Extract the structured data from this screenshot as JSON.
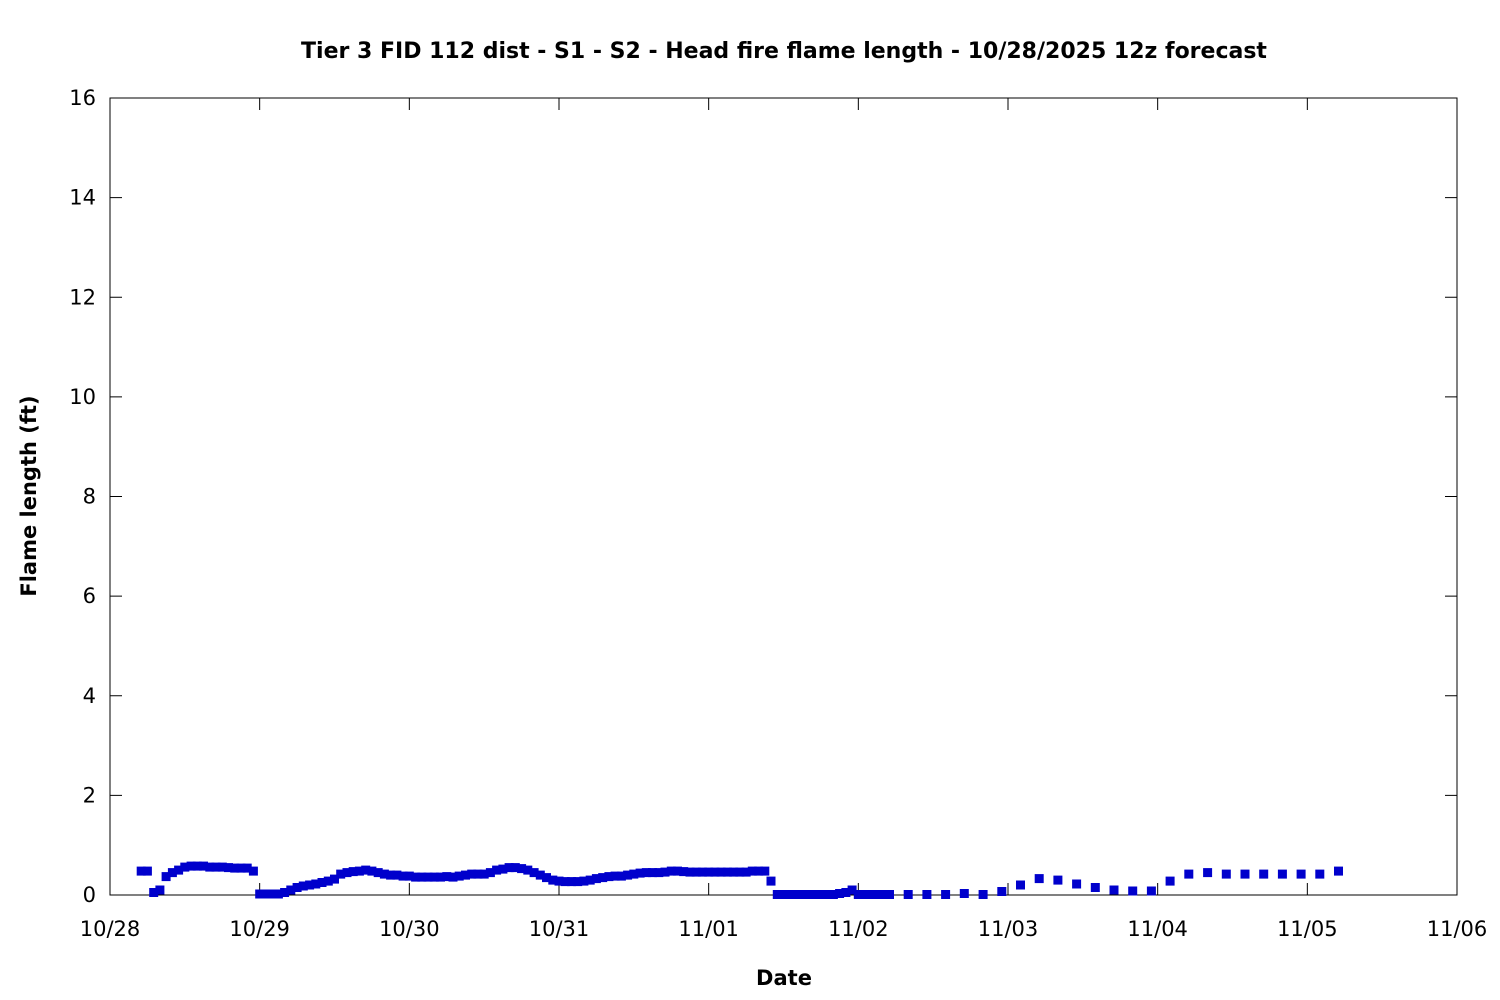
{
  "chart_data": {
    "type": "scatter",
    "title": "Tier 3 FID 112 dist - S1 - S2 - Head fire flame length - 10/28/2025 12z forecast",
    "xlabel": "Date",
    "ylabel": "Flame length (ft)",
    "xlim": [
      "10/28",
      "11/06"
    ],
    "ylim": [
      0,
      16
    ],
    "x_ticks": [
      "10/28",
      "10/29",
      "10/30",
      "10/31",
      "11/01",
      "11/02",
      "11/03",
      "11/04",
      "11/05",
      "11/06"
    ],
    "y_ticks": [
      "0",
      "2",
      "4",
      "6",
      "8",
      "10",
      "12",
      "14",
      "16"
    ],
    "grid": false,
    "legend": "none",
    "marker_color": "#0000cc",
    "series": [
      {
        "x": [
          "10/28 05:00",
          "10/28 06:00",
          "10/28 07:00",
          "10/28 08:00",
          "10/28 09:00",
          "10/28 10:00",
          "10/28 11:00",
          "10/28 12:00",
          "10/28 13:00",
          "10/28 14:00",
          "10/28 15:00",
          "10/28 16:00",
          "10/28 17:00",
          "10/28 18:00",
          "10/28 19:00",
          "10/28 20:00",
          "10/28 21:00",
          "10/28 22:00",
          "10/28 23:00",
          "10/29 00:00",
          "10/29 01:00",
          "10/29 02:00",
          "10/29 03:00",
          "10/29 04:00",
          "10/29 05:00",
          "10/29 06:00",
          "10/29 07:00",
          "10/29 08:00",
          "10/29 09:00",
          "10/29 10:00",
          "10/29 11:00",
          "10/29 12:00",
          "10/29 13:00",
          "10/29 14:00",
          "10/29 15:00",
          "10/29 16:00",
          "10/29 17:00",
          "10/29 18:00",
          "10/29 19:00",
          "10/29 20:00",
          "10/29 21:00",
          "10/29 22:00",
          "10/29 23:00",
          "10/30 00:00",
          "10/30 01:00",
          "10/30 02:00",
          "10/30 03:00",
          "10/30 04:00",
          "10/30 05:00",
          "10/30 06:00",
          "10/30 07:00",
          "10/30 08:00",
          "10/30 09:00",
          "10/30 10:00",
          "10/30 11:00",
          "10/30 12:00",
          "10/30 13:00",
          "10/30 14:00",
          "10/30 15:00",
          "10/30 16:00",
          "10/30 17:00",
          "10/30 18:00",
          "10/30 19:00",
          "10/30 20:00",
          "10/30 21:00",
          "10/30 22:00",
          "10/30 23:00",
          "10/31 00:00",
          "10/31 01:00",
          "10/31 02:00",
          "10/31 03:00",
          "10/31 04:00",
          "10/31 05:00",
          "10/31 06:00",
          "10/31 07:00",
          "10/31 08:00",
          "10/31 09:00",
          "10/31 10:00",
          "10/31 11:00",
          "10/31 12:00",
          "10/31 13:00",
          "10/31 14:00",
          "10/31 15:00",
          "10/31 16:00",
          "10/31 17:00",
          "10/31 18:00",
          "10/31 19:00",
          "10/31 20:00",
          "10/31 21:00",
          "10/31 22:00",
          "10/31 23:00",
          "11/01 00:00",
          "11/01 01:00",
          "11/01 02:00",
          "11/01 03:00",
          "11/01 04:00",
          "11/01 05:00",
          "11/01 06:00",
          "11/01 07:00",
          "11/01 08:00",
          "11/01 09:00",
          "11/01 10:00",
          "11/01 11:00",
          "11/01 12:00",
          "11/01 13:00",
          "11/01 14:00",
          "11/01 15:00",
          "11/01 16:00",
          "11/01 17:00",
          "11/01 18:00",
          "11/01 19:00",
          "11/01 20:00",
          "11/01 21:00",
          "11/01 22:00",
          "11/01 23:00",
          "11/02 00:00",
          "11/02 01:00",
          "11/02 02:00",
          "11/02 03:00",
          "11/02 04:00",
          "11/02 05:00",
          "11/02 08:00",
          "11/02 11:00",
          "11/02 14:00",
          "11/02 17:00",
          "11/02 20:00",
          "11/02 23:00",
          "11/03 02:00",
          "11/03 05:00",
          "11/03 08:00",
          "11/03 11:00",
          "11/03 14:00",
          "11/03 17:00",
          "11/03 20:00",
          "11/03 23:00",
          "11/04 02:00",
          "11/04 05:00",
          "11/04 08:00",
          "11/04 11:00",
          "11/04 14:00",
          "11/04 17:00",
          "11/04 20:00",
          "11/04 23:00",
          "11/05 02:00",
          "11/05 05:00"
        ],
        "y": [
          0.48,
          0.48,
          0.05,
          0.1,
          0.37,
          0.45,
          0.5,
          0.56,
          0.58,
          0.58,
          0.58,
          0.56,
          0.56,
          0.56,
          0.55,
          0.54,
          0.54,
          0.54,
          0.48,
          0.02,
          0.02,
          0.02,
          0.02,
          0.05,
          0.1,
          0.15,
          0.18,
          0.2,
          0.22,
          0.25,
          0.28,
          0.32,
          0.42,
          0.45,
          0.47,
          0.48,
          0.5,
          0.48,
          0.45,
          0.42,
          0.4,
          0.4,
          0.38,
          0.38,
          0.36,
          0.36,
          0.36,
          0.36,
          0.36,
          0.37,
          0.36,
          0.38,
          0.4,
          0.42,
          0.42,
          0.42,
          0.45,
          0.5,
          0.52,
          0.55,
          0.55,
          0.53,
          0.5,
          0.45,
          0.4,
          0.35,
          0.3,
          0.28,
          0.27,
          0.27,
          0.27,
          0.28,
          0.3,
          0.33,
          0.35,
          0.37,
          0.38,
          0.38,
          0.4,
          0.42,
          0.44,
          0.45,
          0.45,
          0.45,
          0.46,
          0.48,
          0.48,
          0.47,
          0.46,
          0.46,
          0.46,
          0.46,
          0.46,
          0.46,
          0.46,
          0.46,
          0.46,
          0.46,
          0.48,
          0.48,
          0.48,
          0.28,
          0.01,
          0.01,
          0.01,
          0.01,
          0.01,
          0.01,
          0.01,
          0.01,
          0.01,
          0.01,
          0.03,
          0.05,
          0.1,
          0.01,
          0.01,
          0.01,
          0.01,
          0.01,
          0.01,
          0.01,
          0.01,
          0.01,
          0.03,
          0.01,
          0.07,
          0.2,
          0.33,
          0.3,
          0.22,
          0.15,
          0.1,
          0.08,
          0.08,
          0.28,
          0.42,
          0.45,
          0.42,
          0.42,
          0.42,
          0.42,
          0.42,
          0.42,
          0.48
        ]
      }
    ]
  }
}
